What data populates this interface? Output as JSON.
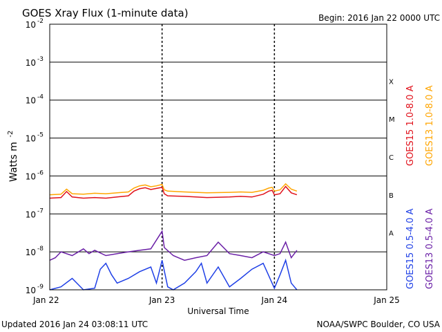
{
  "chart_data": {
    "type": "line",
    "title": "GOES Xray Flux (1-minute data)",
    "begin_label": "Begin:  2016 Jan 22 0000 UTC",
    "xlabel": "Universal Time",
    "ylabel_main": "Watts m",
    "ylabel_exp": "-2",
    "y_scale": "log",
    "ylim": [
      1e-09,
      0.01
    ],
    "y_ticks": [
      {
        "value": 0.01,
        "exp": "-2"
      },
      {
        "value": 0.001,
        "exp": "-3"
      },
      {
        "value": 0.0001,
        "exp": "-4"
      },
      {
        "value": 1e-05,
        "exp": "-5"
      },
      {
        "value": 1e-06,
        "exp": "-6"
      },
      {
        "value": 1e-07,
        "exp": "-7"
      },
      {
        "value": 1e-08,
        "exp": "-8"
      },
      {
        "value": 1e-09,
        "exp": "-9"
      }
    ],
    "x_ticks": [
      "Jan 22",
      "Jan 23",
      "Jan 24",
      "Jan 25"
    ],
    "flare_classes": [
      {
        "label": "X",
        "value": 0.000316
      },
      {
        "label": "M",
        "value": 3.16e-05
      },
      {
        "label": "C",
        "value": 3.16e-06
      },
      {
        "label": "B",
        "value": 3.16e-07
      },
      {
        "label": "A",
        "value": 3.16e-08
      }
    ],
    "legend_right_outer": [
      {
        "name": "GOES13 1.0-8.0 A",
        "color": "#FFA500"
      },
      {
        "name": "GOES13 0.5-4.0 A",
        "color": "#6A1FA6"
      }
    ],
    "legend_right_inner": [
      {
        "name": "GOES15 1.0-8.0 A",
        "color": "#E0101A"
      },
      {
        "name": "GOES15 0.5-4.0 A",
        "color": "#1E3FE6"
      }
    ],
    "series": [
      {
        "name": "GOES13 1.0-8.0 A",
        "color": "#FFA500",
        "x_days": [
          0.0,
          0.1,
          0.15,
          0.2,
          0.3,
          0.4,
          0.5,
          0.6,
          0.7,
          0.75,
          0.8,
          0.85,
          0.9,
          0.95,
          1.0,
          1.02,
          1.05,
          1.2,
          1.4,
          1.6,
          1.7,
          1.8,
          1.9,
          1.95,
          1.98,
          2.0,
          2.05,
          2.1,
          2.15,
          2.2
        ],
        "values": [
          3.2e-07,
          3.3e-07,
          4.5e-07,
          3.4e-07,
          3.3e-07,
          3.5e-07,
          3.4e-07,
          3.6e-07,
          3.8e-07,
          4.8e-07,
          5.5e-07,
          5.8e-07,
          5.2e-07,
          5.5e-07,
          6e-07,
          4.3e-07,
          4e-07,
          3.8e-07,
          3.6e-07,
          3.7e-07,
          3.8e-07,
          3.7e-07,
          4.2e-07,
          4.8e-07,
          5e-07,
          4e-07,
          4.3e-07,
          6.2e-07,
          4.5e-07,
          4e-07
        ]
      },
      {
        "name": "GOES15 1.0-8.0 A",
        "color": "#E0101A",
        "x_days": [
          0.0,
          0.1,
          0.15,
          0.2,
          0.3,
          0.4,
          0.5,
          0.6,
          0.7,
          0.75,
          0.8,
          0.85,
          0.9,
          0.95,
          1.0,
          1.02,
          1.05,
          1.2,
          1.4,
          1.6,
          1.7,
          1.8,
          1.9,
          1.95,
          1.98,
          2.0,
          2.05,
          2.1,
          2.15,
          2.2
        ],
        "values": [
          2.6e-07,
          2.7e-07,
          3.9e-07,
          2.8e-07,
          2.6e-07,
          2.7e-07,
          2.6e-07,
          2.8e-07,
          3e-07,
          4e-07,
          4.6e-07,
          4.9e-07,
          4.4e-07,
          4.7e-07,
          5e-07,
          3.4e-07,
          3e-07,
          2.9e-07,
          2.7e-07,
          2.8e-07,
          2.9e-07,
          2.8e-07,
          3.3e-07,
          4e-07,
          4.2e-07,
          3.2e-07,
          3.4e-07,
          5.3e-07,
          3.6e-07,
          3.2e-07
        ]
      },
      {
        "name": "GOES13 0.5-4.0 A",
        "color": "#6A1FA6",
        "x_days": [
          0.0,
          0.05,
          0.1,
          0.2,
          0.3,
          0.35,
          0.4,
          0.5,
          0.6,
          0.7,
          0.8,
          0.9,
          1.0,
          1.02,
          1.1,
          1.2,
          1.3,
          1.4,
          1.5,
          1.6,
          1.7,
          1.8,
          1.9,
          2.0,
          2.05,
          2.1,
          2.15,
          2.2
        ],
        "values": [
          6e-09,
          7e-09,
          1e-08,
          8e-09,
          1.2e-08,
          9e-09,
          1.1e-08,
          8e-09,
          9e-09,
          1e-08,
          1.1e-08,
          1.2e-08,
          3.5e-08,
          1.3e-08,
          8e-09,
          6e-09,
          7e-09,
          8e-09,
          1.8e-08,
          9e-09,
          8e-09,
          7e-09,
          1e-08,
          8e-09,
          9e-09,
          1.8e-08,
          7e-09,
          1.1e-08
        ]
      },
      {
        "name": "GOES15 0.5-4.0 A",
        "color": "#1E3FE6",
        "x_days": [
          0.0,
          0.1,
          0.2,
          0.3,
          0.4,
          0.45,
          0.5,
          0.55,
          0.6,
          0.7,
          0.8,
          0.9,
          0.95,
          1.0,
          1.05,
          1.1,
          1.2,
          1.3,
          1.35,
          1.4,
          1.5,
          1.6,
          1.7,
          1.8,
          1.9,
          2.0,
          2.05,
          2.1,
          2.15,
          2.2
        ],
        "values": [
          1e-09,
          1.2e-09,
          2e-09,
          1e-09,
          1.1e-09,
          3.5e-09,
          5e-09,
          2.5e-09,
          1.5e-09,
          2e-09,
          3e-09,
          4e-09,
          1.5e-09,
          6e-09,
          1.2e-09,
          1e-09,
          1.5e-09,
          3e-09,
          5e-09,
          1.5e-09,
          4e-09,
          1.2e-09,
          2e-09,
          3.5e-09,
          5e-09,
          1.1e-09,
          2.5e-09,
          6e-09,
          1.5e-09,
          1e-09
        ]
      }
    ],
    "footer_left": "Updated 2016 Jan 24 03:08:11 UTC",
    "footer_right": "NOAA/SWPC Boulder, CO USA"
  }
}
